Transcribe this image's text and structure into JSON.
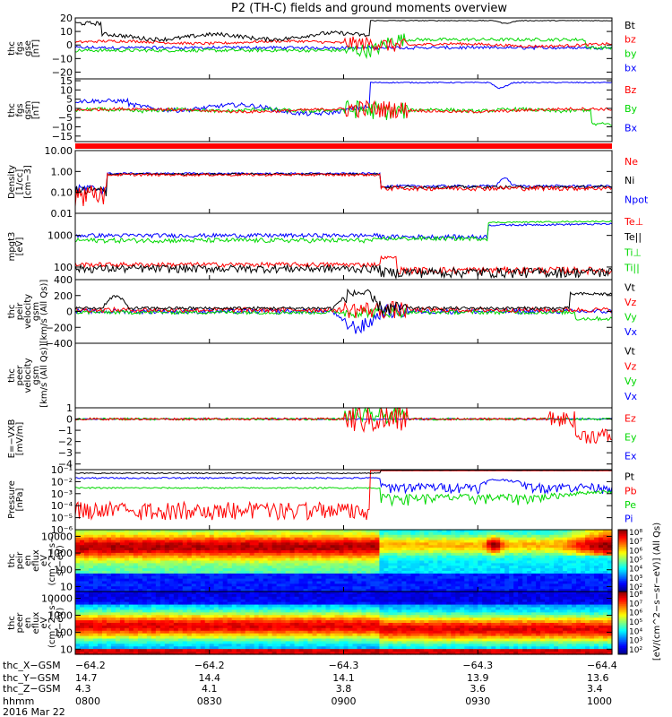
{
  "title": "P2 (TH-C) fields and ground moments overview",
  "colors": {
    "black": "#000000",
    "red": "#ff0000",
    "green": "#00d800",
    "blue": "#0000ff"
  },
  "chart_data": [
    {
      "type": "line",
      "ylabel": [
        "thc",
        "fgs",
        "gse",
        "[nT]"
      ],
      "ylim": [
        -25,
        20
      ],
      "log": false,
      "ticks": [
        "20",
        "10",
        "0",
        "−10",
        "−20"
      ],
      "tickvals": [
        20,
        10,
        0,
        -10,
        -20
      ],
      "legend": [
        {
          "name": "Bt",
          "color": "black"
        },
        {
          "name": "bz",
          "color": "red"
        },
        {
          "name": "by",
          "color": "green"
        },
        {
          "name": "bx",
          "color": "blue"
        }
      ]
    },
    {
      "type": "line",
      "ylabel": [
        "thc",
        "fgs",
        "gsm",
        "[nT]"
      ],
      "ylim": [
        -18,
        16
      ],
      "log": false,
      "ticks": [
        "15",
        "10",
        "5",
        "0",
        "−5",
        "−10",
        "−15"
      ],
      "tickvals": [
        15,
        10,
        5,
        0,
        -5,
        -10,
        -15
      ],
      "legend": [
        {
          "name": "Bz",
          "color": "red"
        },
        {
          "name": "By",
          "color": "green"
        },
        {
          "name": "Bx",
          "color": "blue"
        }
      ]
    },
    {
      "type": "line",
      "ylabel": [
        "Density",
        "[1/cc]",
        "[cm−3]"
      ],
      "ylim": [
        0.01,
        10
      ],
      "log": true,
      "ticks": [
        "10.00",
        "1.00",
        "0.10",
        "0.01"
      ],
      "tickvals": [
        10,
        1,
        0.1,
        0.01
      ],
      "legend": [
        {
          "name": "Ne",
          "color": "red"
        },
        {
          "name": "Ni",
          "color": "black"
        },
        {
          "name": "Npot",
          "color": "blue"
        }
      ]
    },
    {
      "type": "line",
      "ylabel": [
        "mpgt3",
        "[eV]"
      ],
      "ylim": [
        40,
        5000
      ],
      "log": true,
      "ticks": [
        "1000",
        "100"
      ],
      "tickvals": [
        1000,
        100
      ],
      "legend": [
        {
          "name": "Te⊥",
          "color": "red"
        },
        {
          "name": "Te||",
          "color": "black"
        },
        {
          "name": "Ti⊥",
          "color": "green"
        },
        {
          "name": "Ti||",
          "color": "green"
        }
      ]
    },
    {
      "type": "line",
      "ylabel": [
        "thc",
        "peir",
        "velocity",
        "gsm",
        "[km/s (All Qs)]"
      ],
      "ylim": [
        -400,
        400
      ],
      "log": false,
      "ticks": [
        "400",
        "200",
        "0",
        "−200",
        "−400"
      ],
      "tickvals": [
        400,
        200,
        0,
        -200,
        -400
      ],
      "legend": [
        {
          "name": "Vt",
          "color": "black"
        },
        {
          "name": "Vz",
          "color": "red"
        },
        {
          "name": "Vy",
          "color": "green"
        },
        {
          "name": "Vx",
          "color": "blue"
        }
      ]
    },
    {
      "type": "line",
      "ylabel": [
        "thc",
        "peer",
        "velocity",
        "gsm",
        "[km/s (All Qs)]"
      ],
      "ylim": [
        -1,
        1
      ],
      "log": false,
      "ticks": [],
      "tickvals": [],
      "legend": [
        {
          "name": "Vt",
          "color": "black"
        },
        {
          "name": "Vz",
          "color": "red"
        },
        {
          "name": "Vy",
          "color": "green"
        },
        {
          "name": "Vx",
          "color": "blue"
        }
      ]
    },
    {
      "type": "line",
      "ylabel": [
        "E=−VXB",
        "[mV/m]"
      ],
      "ylim": [
        -4.5,
        1
      ],
      "log": false,
      "ticks": [
        "1",
        "0",
        "−1",
        "−2",
        "−3",
        "−4"
      ],
      "tickvals": [
        1,
        0,
        -1,
        -2,
        -3,
        -4
      ],
      "legend": [
        {
          "name": "Ez",
          "color": "red"
        },
        {
          "name": "Ey",
          "color": "green"
        },
        {
          "name": "Ex",
          "color": "blue"
        }
      ]
    },
    {
      "type": "line",
      "ylabel": [
        "Pressure",
        "[nPa]"
      ],
      "ylim": [
        1e-06,
        0.1
      ],
      "log": true,
      "ticks": [
        "10⁻¹",
        "10⁻²",
        "10⁻³",
        "10⁻⁴",
        "10⁻⁵",
        "10⁻⁶"
      ],
      "tickvals": [
        0.1,
        0.01,
        0.001,
        0.0001,
        1e-05,
        1e-06
      ],
      "legend": [
        {
          "name": "Pt",
          "color": "black"
        },
        {
          "name": "Pb",
          "color": "red"
        },
        {
          "name": "Pe",
          "color": "green"
        },
        {
          "name": "Pi",
          "color": "blue"
        }
      ]
    },
    {
      "type": "heatmap",
      "ylabel": [
        "thc",
        "peir",
        "en",
        "eflux",
        "eV",
        "(cm^2−s−",
        "sr−eV)"
      ],
      "ylim": [
        5,
        25000
      ],
      "log": true,
      "ticks": [
        "10000",
        "1000",
        "100",
        "10"
      ],
      "tickvals": [
        10000,
        1000,
        100,
        10
      ]
    },
    {
      "type": "heatmap",
      "ylabel": [
        "thc",
        "peer",
        "en",
        "eflux",
        "eV",
        "(cm^2−s−",
        "sr−eV)"
      ],
      "ylim": [
        5,
        25000
      ],
      "log": true,
      "ticks": [
        "10000",
        "1000",
        "100",
        "10"
      ],
      "tickvals": [
        10000,
        1000,
        100,
        10
      ]
    }
  ],
  "colorbar": {
    "label": "[eV/(cm^2−s−sr−eV)] (All Qs)",
    "top_labels": [
      "10⁸",
      "10⁷",
      "10⁶",
      "10⁵",
      "10⁴",
      "10³",
      "10²"
    ],
    "bottom_labels": [
      "10⁸",
      "10⁷",
      "10⁶",
      "10⁵",
      "10⁴",
      "10³",
      "10²"
    ]
  },
  "x_axis": {
    "rows": [
      {
        "name": "thc_X−GSM",
        "values": [
          "−64.2",
          "−64.2",
          "−64.3",
          "−64.3",
          "−64.4"
        ]
      },
      {
        "name": "thc_Y−GSM",
        "values": [
          "14.7",
          "14.4",
          "14.1",
          "13.9",
          "13.6"
        ]
      },
      {
        "name": "thc_Z−GSM",
        "values": [
          "4.3",
          "4.1",
          "3.8",
          "3.6",
          "3.4"
        ]
      },
      {
        "name": "hhmm",
        "values": [
          "0800",
          "0830",
          "0900",
          "0930",
          "1000"
        ]
      }
    ],
    "date": "2016 Mar 22"
  }
}
